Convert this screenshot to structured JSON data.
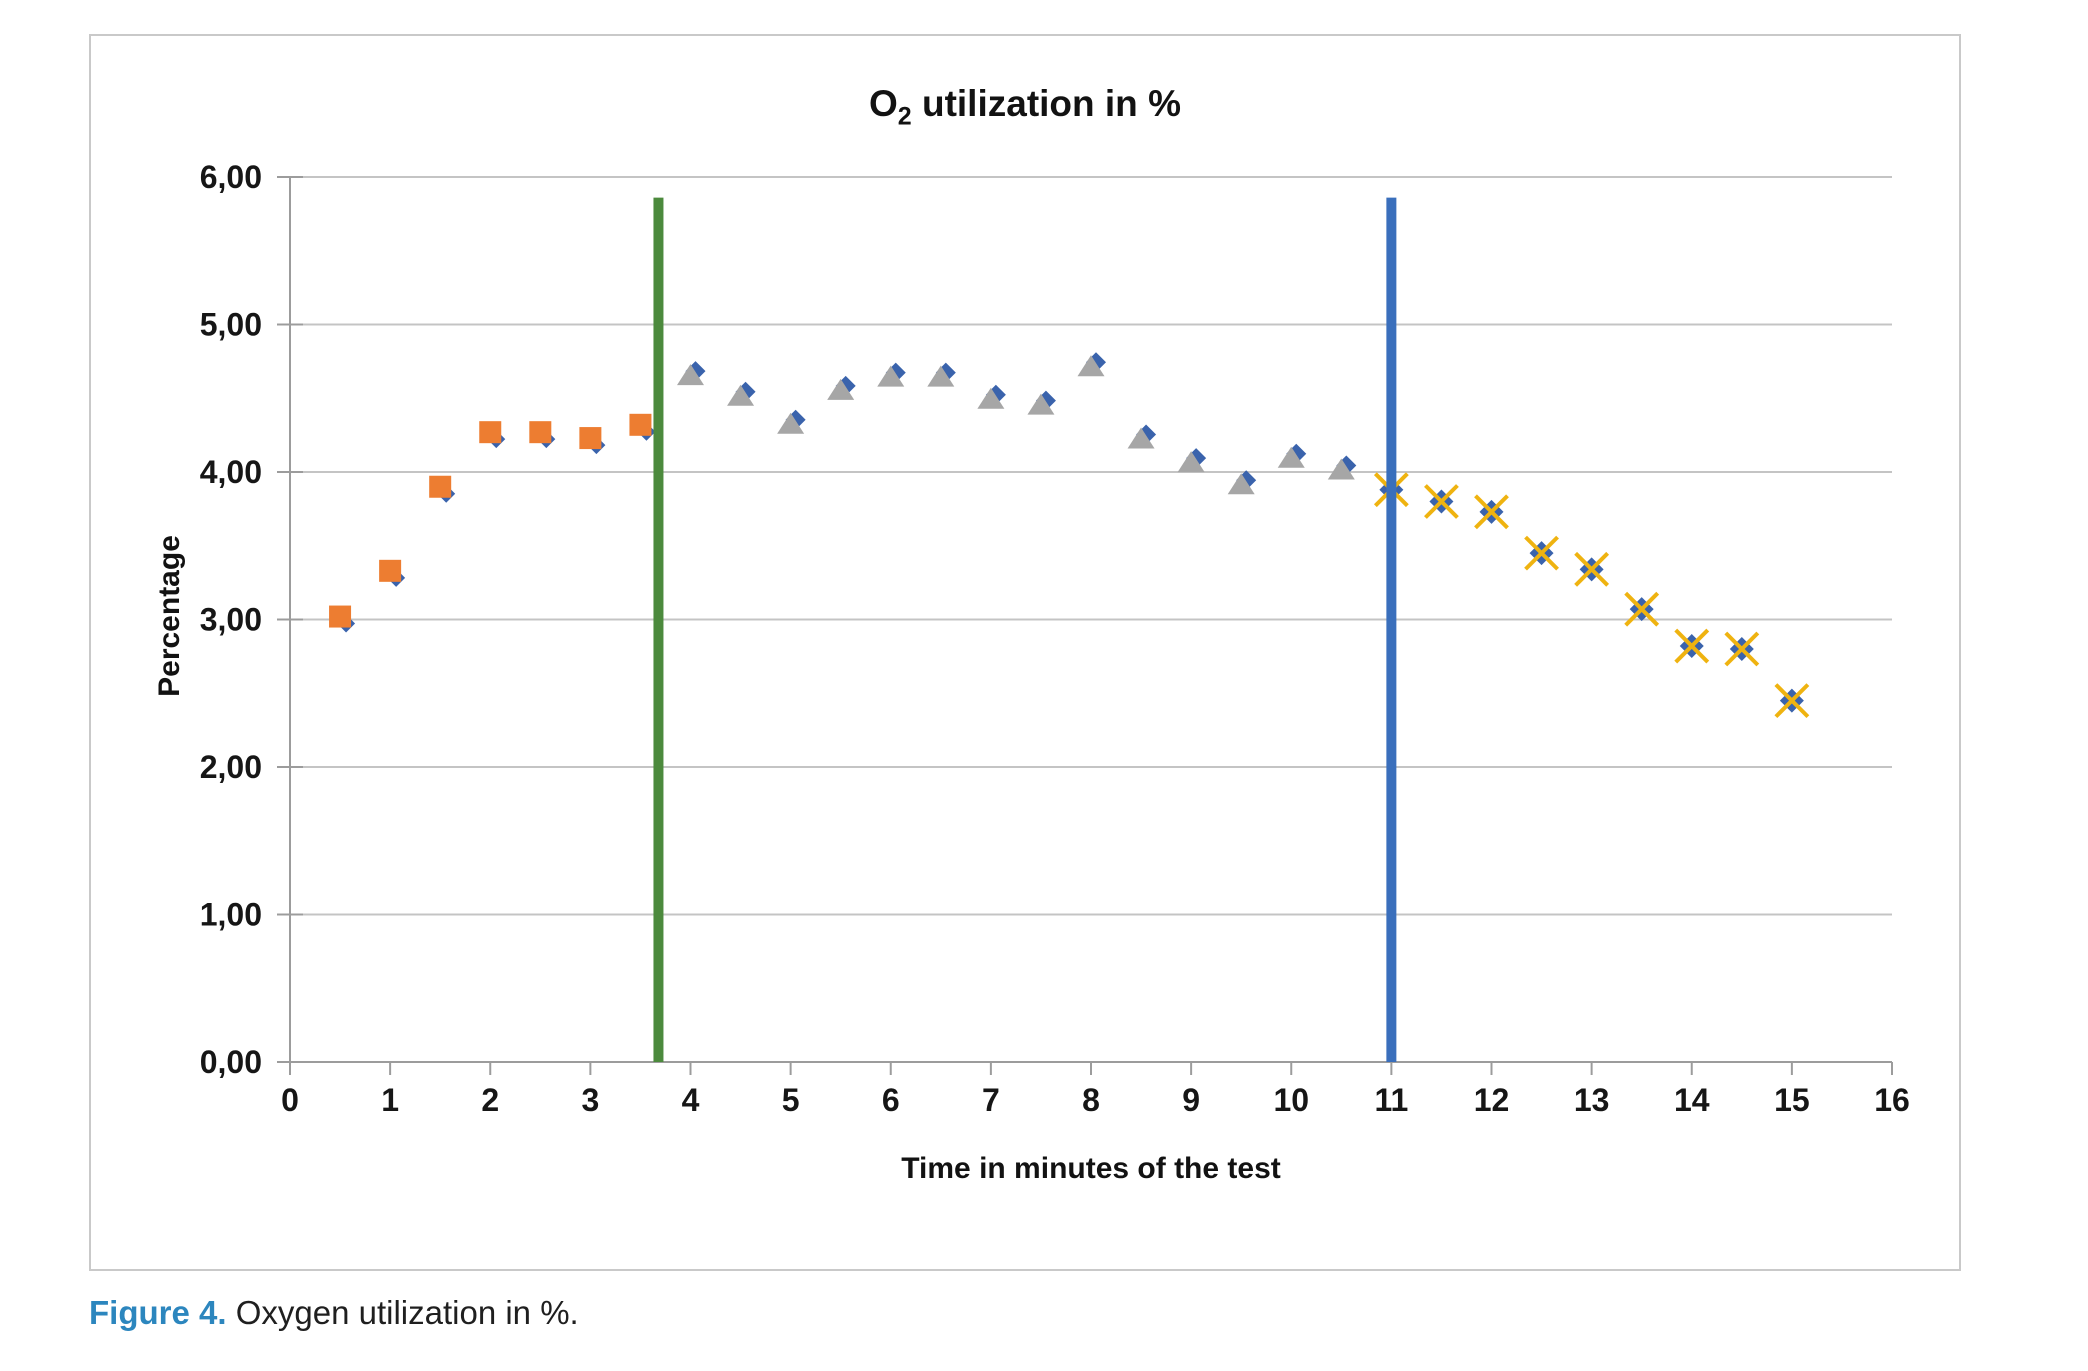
{
  "figure": {
    "caption_label": "Figure 4.",
    "caption_text": " Oxygen utilization in %."
  },
  "colors": {
    "axis": "#9C9C9C",
    "grid": "#C4C4C4",
    "frame_border": "#C9C9C9",
    "tick_text": "#161616",
    "caption_label": "#2C86BE"
  },
  "chart_data": {
    "type": "scatter",
    "title": {
      "prefix": "O",
      "subscript": "2",
      "suffix": " utilization in %"
    },
    "xlabel": "Time in minutes of the test",
    "ylabel": "Percentage",
    "xlim": [
      0,
      16
    ],
    "ylim": [
      0,
      6
    ],
    "grid": "horizontal-only",
    "legend": "none",
    "decimal_separator": "comma",
    "x_ticks": [
      0,
      1,
      2,
      3,
      4,
      5,
      6,
      7,
      8,
      9,
      10,
      11,
      12,
      13,
      14,
      15,
      16
    ],
    "x_tick_labels": [
      "0",
      "1",
      "2",
      "3",
      "4",
      "5",
      "6",
      "7",
      "8",
      "9",
      "10",
      "11",
      "12",
      "13",
      "14",
      "15",
      "16"
    ],
    "y_ticks": [
      0,
      1,
      2,
      3,
      4,
      5,
      6
    ],
    "y_tick_labels": [
      "0,00",
      "1,00",
      "2,00",
      "3,00",
      "4,00",
      "5,00",
      "6,00"
    ],
    "series": [
      {
        "name": "phase1-warmup",
        "marker": "square",
        "color": "#ED7D31",
        "underlay_marker": {
          "shape": "diamond",
          "color": "#3A63AC"
        },
        "points": [
          [
            0.5,
            3.02
          ],
          [
            1,
            3.33
          ],
          [
            1.5,
            3.9
          ],
          [
            2,
            4.27
          ],
          [
            2.5,
            4.27
          ],
          [
            3,
            4.23
          ],
          [
            3.5,
            4.32
          ]
        ]
      },
      {
        "name": "phase2-test",
        "marker": "triangle",
        "color": "#A6A6A6",
        "underlay_marker": {
          "shape": "diamond",
          "color": "#3A63AC"
        },
        "points": [
          [
            4,
            4.65
          ],
          [
            4.5,
            4.51
          ],
          [
            5,
            4.32
          ],
          [
            5.5,
            4.55
          ],
          [
            6,
            4.64
          ],
          [
            6.5,
            4.64
          ],
          [
            7,
            4.49
          ],
          [
            7.5,
            4.45
          ],
          [
            8,
            4.71
          ],
          [
            8.5,
            4.22
          ],
          [
            9,
            4.06
          ],
          [
            9.5,
            3.91
          ],
          [
            10,
            4.09
          ],
          [
            10.5,
            4.01
          ]
        ]
      },
      {
        "name": "phase3-recovery",
        "marker": "diamond-with-x",
        "color": "#3A63AC",
        "x_overlay_color": "#EFB310",
        "points": [
          [
            11,
            3.88
          ],
          [
            11.5,
            3.8
          ],
          [
            12,
            3.73
          ],
          [
            12.5,
            3.45
          ],
          [
            13,
            3.34
          ],
          [
            13.5,
            3.07
          ],
          [
            14,
            2.82
          ],
          [
            14.5,
            2.8
          ],
          [
            15,
            2.45
          ]
        ]
      }
    ],
    "vlines": [
      {
        "name": "test-start-line",
        "x": 3.68,
        "y_top": 5.86,
        "color": "#4C8A3D"
      },
      {
        "name": "test-end-line",
        "x": 11,
        "y_top": 5.86,
        "color": "#3A6FBC"
      }
    ]
  }
}
